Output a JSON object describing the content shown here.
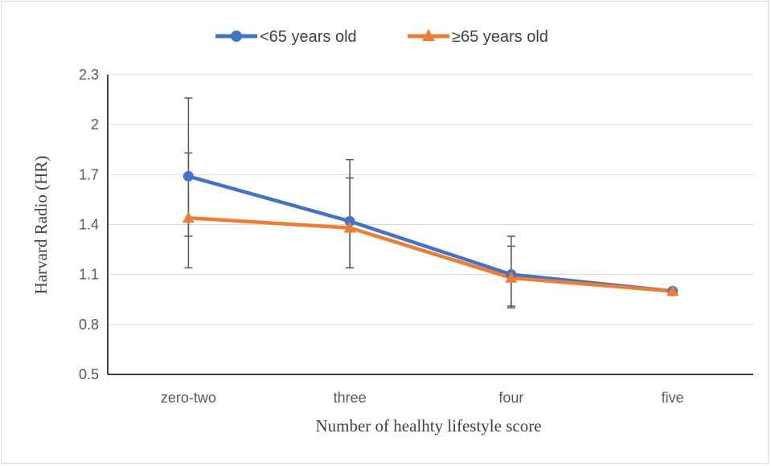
{
  "chart_data": {
    "type": "line",
    "categories": [
      "zero-two",
      "three",
      "four",
      "five"
    ],
    "series": [
      {
        "name": "<65 years old",
        "color": "#4472C4",
        "marker": "circle",
        "values": [
          1.69,
          1.42,
          1.1,
          1.0
        ],
        "error_low": [
          1.33,
          1.14,
          0.91,
          1.0
        ],
        "error_high": [
          2.16,
          1.68,
          1.33,
          1.0
        ]
      },
      {
        "name": "≥65 years old",
        "color": "#ED7D31",
        "marker": "triangle",
        "values": [
          1.44,
          1.38,
          1.08,
          1.0
        ],
        "error_low": [
          1.14,
          1.14,
          0.9,
          1.0
        ],
        "error_high": [
          1.83,
          1.79,
          1.27,
          1.0
        ]
      }
    ],
    "xlabel": "Number of  healhty lifestyle score",
    "ylabel": "Harvard Radio (HR)",
    "ylim": [
      0.5,
      2.3
    ],
    "yticks": [
      "0.5",
      "0.8",
      "1.1",
      "1.4",
      "1.7",
      "2",
      "2.3"
    ],
    "grid": true,
    "legend_position": "top"
  }
}
